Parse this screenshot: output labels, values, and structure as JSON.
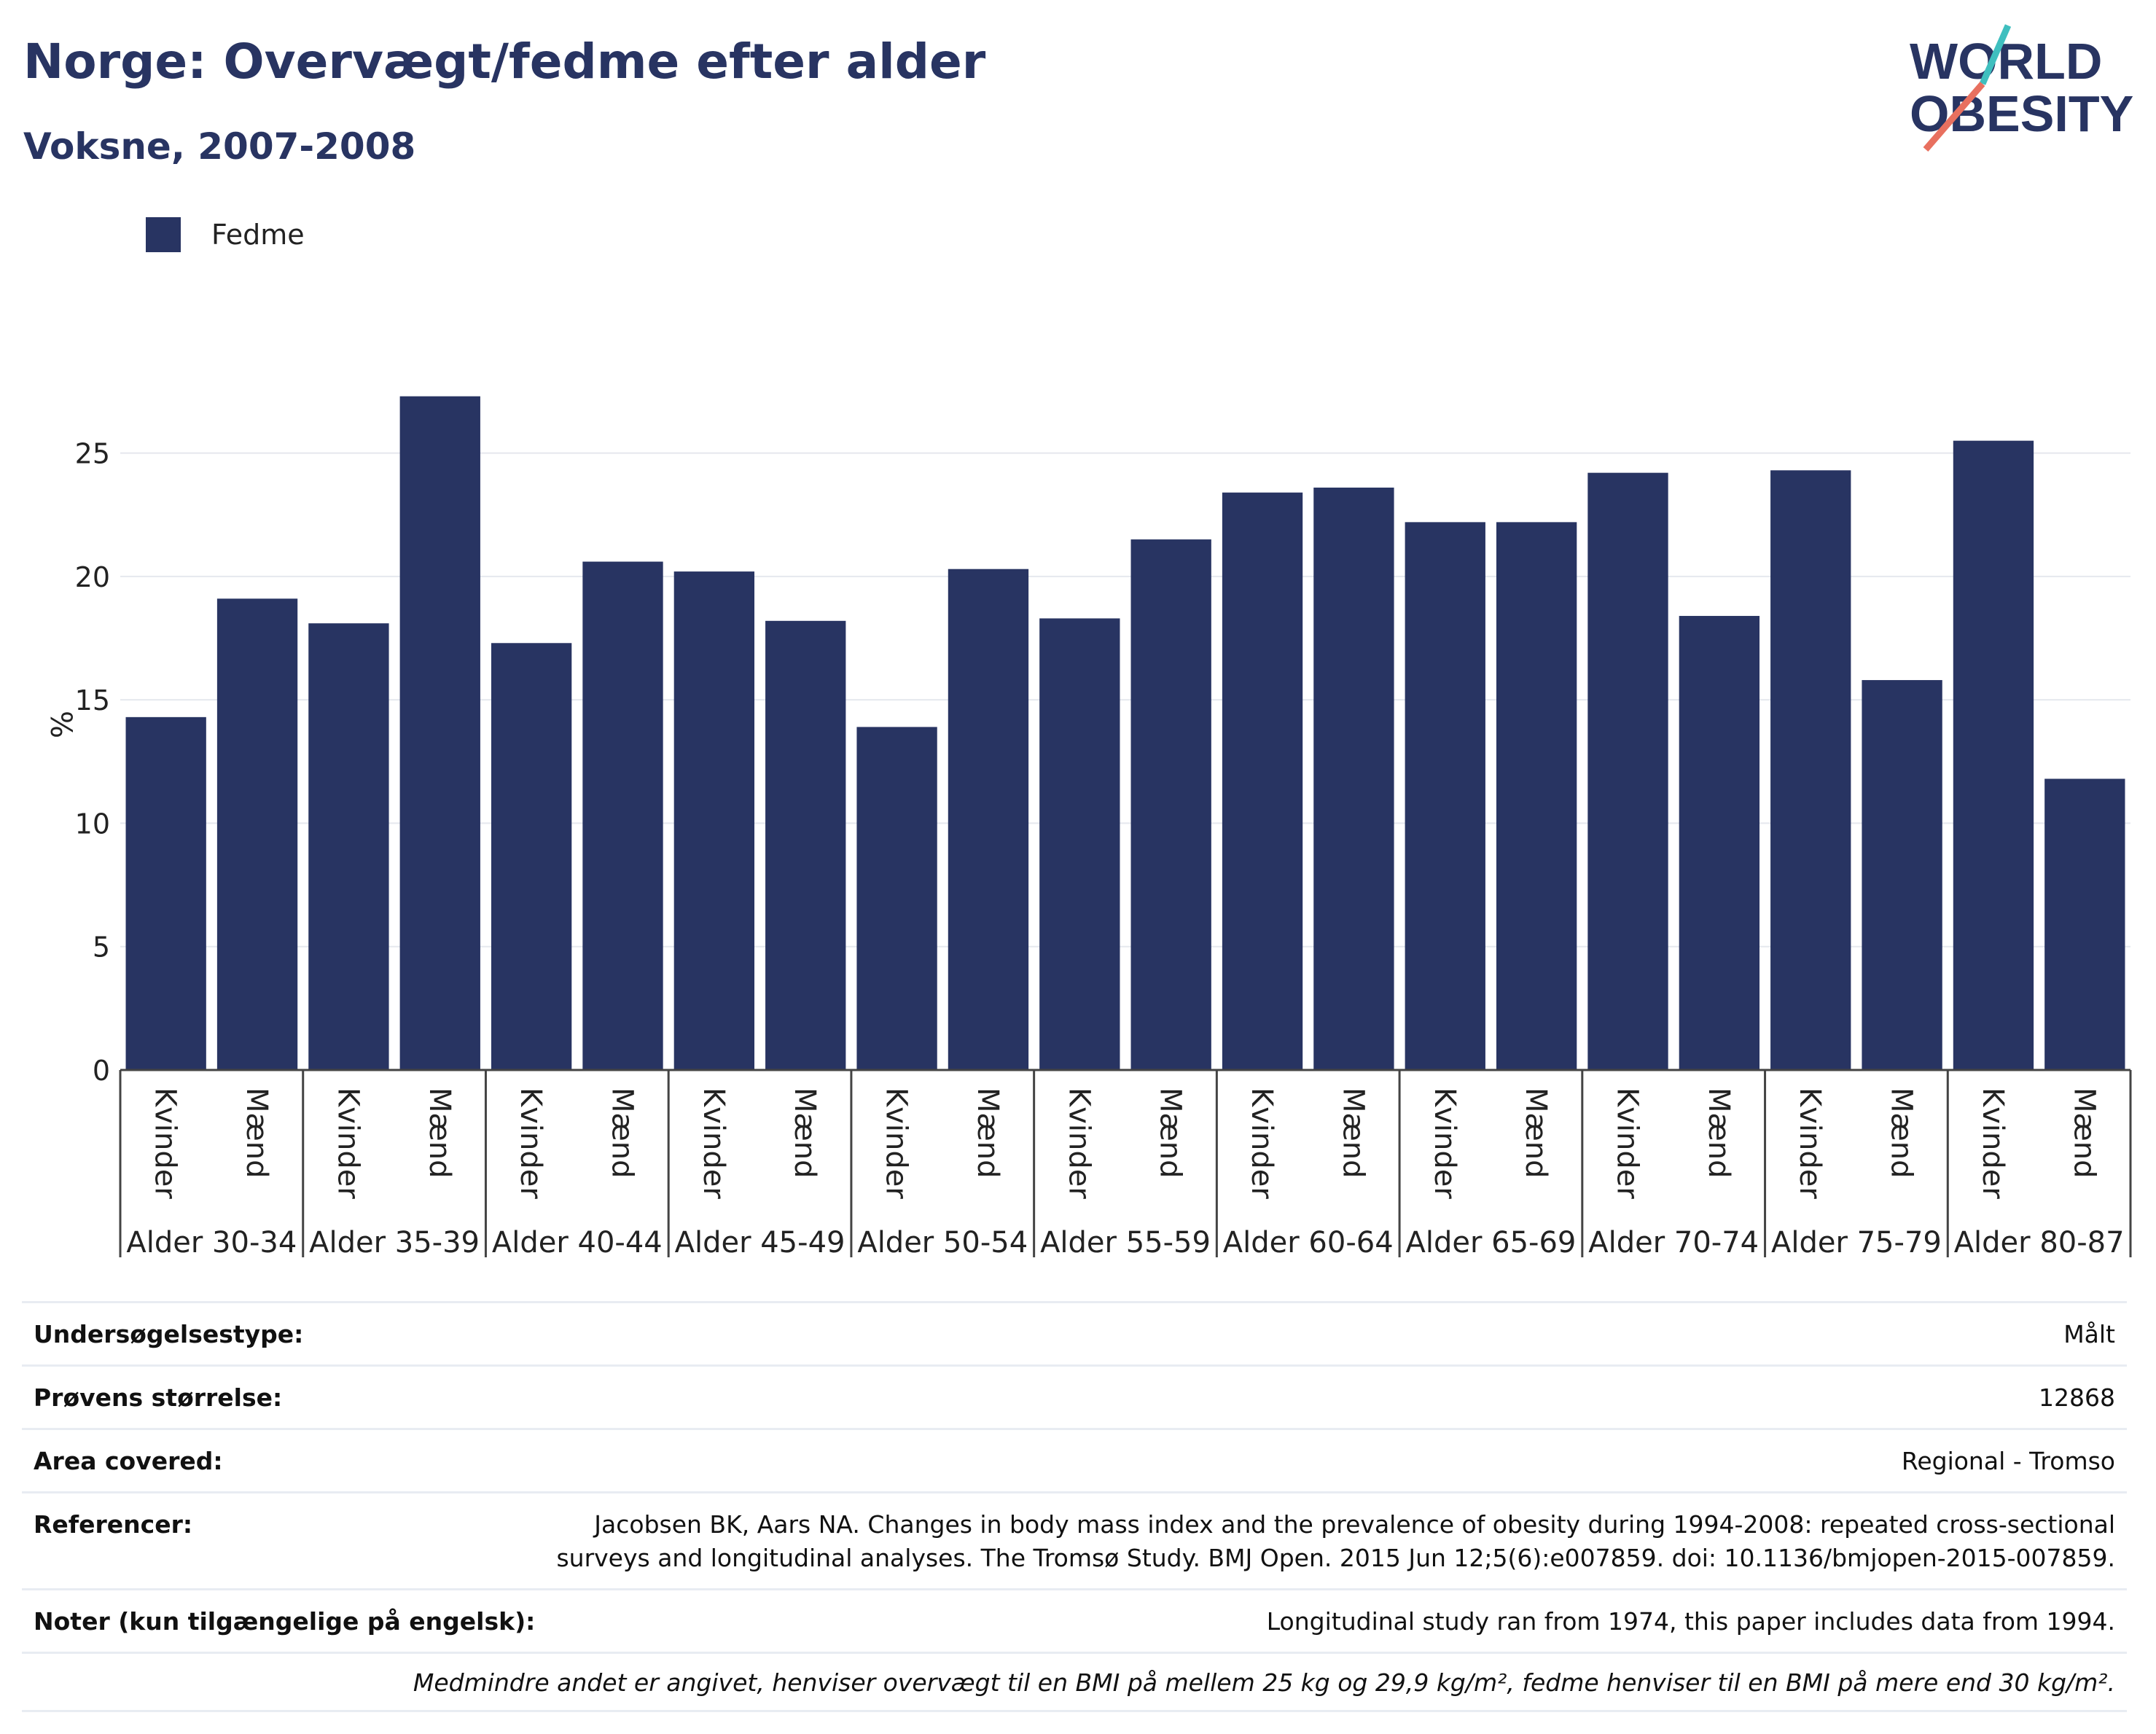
{
  "header": {
    "title": "Norge: Overvægt/fedme efter alder",
    "subtitle": "Voksne, 2007-2008"
  },
  "logo": {
    "line1": "WORLD",
    "line2": "OBESITY",
    "icon": "world-obesity-logo"
  },
  "colors": {
    "bar": "#283462",
    "text": "#283462",
    "grid": "#e5e8ee",
    "axis": "#444444",
    "logo_teal": "#3fbfbf",
    "logo_coral": "#e8705f"
  },
  "chart_data": {
    "type": "bar",
    "legend": [
      "Fedme"
    ],
    "legend_position": "top-left",
    "ylabel": "%",
    "ylim": [
      0,
      28
    ],
    "yticks": [
      0,
      5,
      10,
      15,
      20,
      25
    ],
    "grid": true,
    "groups": [
      "Alder 30-34",
      "Alder 35-39",
      "Alder 40-44",
      "Alder 45-49",
      "Alder 50-54",
      "Alder 55-59",
      "Alder 60-64",
      "Alder 65-69",
      "Alder 70-74",
      "Alder 75-79",
      "Alder 80-87"
    ],
    "subcategories": [
      "Kvinder",
      "Mænd"
    ],
    "series": [
      {
        "name": "Fedme",
        "values": [
          14.3,
          19.1,
          18.1,
          27.3,
          17.3,
          20.6,
          20.2,
          18.2,
          13.9,
          20.3,
          18.3,
          21.5,
          23.4,
          23.6,
          22.2,
          22.2,
          24.2,
          18.4,
          24.3,
          15.8,
          25.5,
          11.8
        ]
      }
    ]
  },
  "info": {
    "rows": [
      {
        "label": "Undersøgelsestype:",
        "value": "Målt"
      },
      {
        "label": "Prøvens størrelse:",
        "value": "12868"
      },
      {
        "label": "Area covered:",
        "value": "Regional - Tromso"
      },
      {
        "label": "Referencer:",
        "value": "Jacobsen BK, Aars NA. Changes in body mass index and the prevalence of obesity during 1994-2008: repeated cross-sectional surveys and longitudinal analyses. The Tromsø Study. BMJ Open. 2015 Jun 12;5(6):e007859. doi: 10.1136/bmjopen-2015-007859."
      },
      {
        "label": "Noter (kun tilgængelige på engelsk):",
        "value": "Longitudinal study ran from 1974, this paper includes data from 1994."
      }
    ],
    "footnote": "Medmindre andet er angivet, henviser overvægt til en BMI på mellem 25 kg og 29,9 kg/m², fedme henviser til en BMI på mere end 30 kg/m²."
  }
}
